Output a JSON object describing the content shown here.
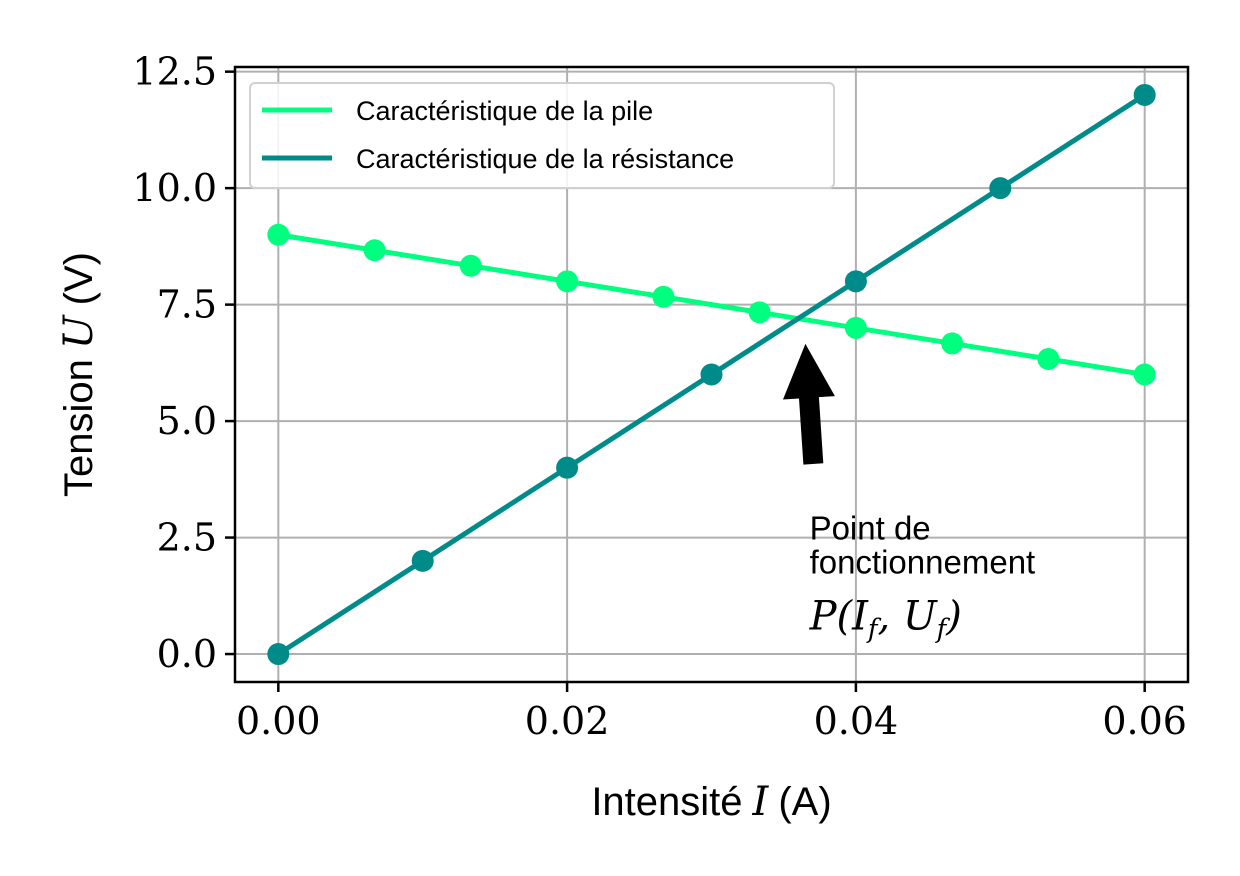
{
  "chart_data": {
    "type": "line",
    "xlabel": "Intensité",
    "xlabel_symbol": "I",
    "xlabel_unit": "(A)",
    "ylabel": "Tension",
    "ylabel_symbol": "U",
    "ylabel_unit": "(V)",
    "xlim": [
      -0.003,
      0.063
    ],
    "ylim": [
      -0.6,
      12.6
    ],
    "x_ticks": [
      0.0,
      0.02,
      0.04,
      0.06
    ],
    "x_tick_labels": [
      "0.00",
      "0.02",
      "0.04",
      "0.06"
    ],
    "y_ticks": [
      0.0,
      2.5,
      5.0,
      7.5,
      10.0,
      12.5
    ],
    "y_tick_labels": [
      "0.0",
      "2.5",
      "5.0",
      "7.5",
      "10.0",
      "12.5"
    ],
    "grid": true,
    "legend_position": "upper-left",
    "series": [
      {
        "name": "Caractéristique de la pile",
        "color": "#00ff7f",
        "x": [
          0.0,
          0.00667,
          0.01333,
          0.02,
          0.02667,
          0.03333,
          0.04,
          0.04667,
          0.05333,
          0.06
        ],
        "y": [
          9.0,
          8.667,
          8.333,
          8.0,
          7.667,
          7.333,
          7.0,
          6.667,
          6.333,
          6.0
        ]
      },
      {
        "name": "Caractéristique de la résistance",
        "color": "#008b8b",
        "x": [
          0.0,
          0.01,
          0.02,
          0.03,
          0.04,
          0.05,
          0.06
        ],
        "y": [
          0.0,
          2.0,
          4.0,
          6.0,
          8.0,
          10.0,
          12.0
        ]
      }
    ],
    "annotation": {
      "line1": "Point de",
      "line2": "fonctionnement",
      "math": "P(I_f, U_f)",
      "math_display": "P(I",
      "math_sub1": "f",
      "math_mid": ", U",
      "math_sub2": "f",
      "math_end": ")",
      "target": [
        0.0365,
        7.3
      ],
      "text_anchor": [
        0.037,
        3.1
      ],
      "arrow_color": "#000000"
    }
  }
}
